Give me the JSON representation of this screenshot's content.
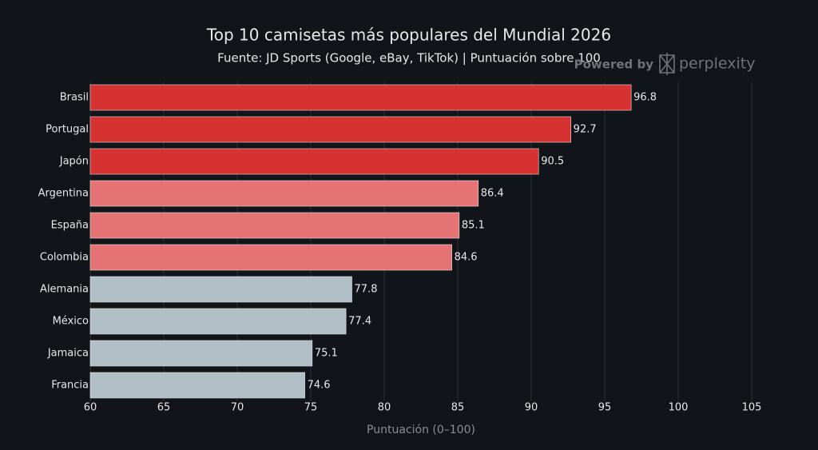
{
  "chart_data": {
    "type": "barh",
    "title": "Top 10 camisetas más populares del Mundial 2026",
    "subtitle": "Fuente: JD Sports (Google, eBay, TikTok) | Puntuación sobre 100",
    "watermark": [
      "Powered by",
      "perplexity"
    ],
    "x_label": "Puntuación (0–100)",
    "categories": [
      "Brasil",
      "Portugal",
      "Japón",
      "Argentina",
      "España",
      "Colombia",
      "Alemania",
      "México",
      "Jamaica",
      "Francia"
    ],
    "values": [
      96.8,
      92.7,
      90.5,
      86.4,
      85.1,
      84.6,
      77.8,
      77.4,
      75.1,
      74.6
    ],
    "colors": [
      "#d63232",
      "#d63232",
      "#d63232",
      "#e57373",
      "#e57373",
      "#e57373",
      "#b0bec5",
      "#b0bec5",
      "#b0bec5",
      "#b0bec5"
    ],
    "xlim": [
      60,
      105
    ],
    "xticks": [
      60,
      65,
      70,
      75,
      80,
      85,
      90,
      95,
      100,
      105
    ],
    "grid": true
  }
}
